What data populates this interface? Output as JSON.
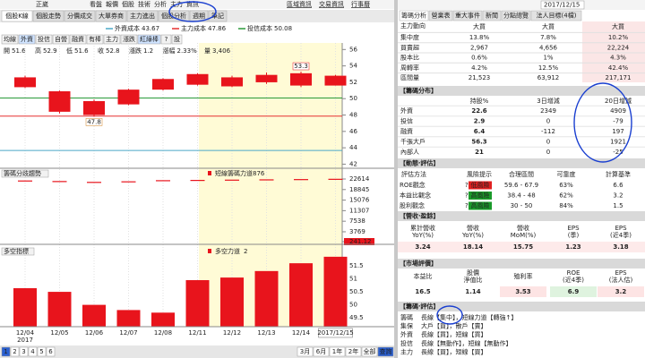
{
  "stock_name": "正崴",
  "top_menu": [
    "看盤",
    "報價",
    "個股",
    "技術",
    "分析",
    "主力",
    "資訊"
  ],
  "top_links": [
    "區域資訊",
    "交易資訊",
    "行事曆"
  ],
  "left_tabs": [
    "個股K線",
    "個股走勢",
    "分價成交",
    "大單券商",
    "主力進出",
    "個股分析",
    "週期",
    "筆記"
  ],
  "cost_lines": [
    {
      "name": "外資成本",
      "value": 43.67,
      "color": "#4aa8c8"
    },
    {
      "name": "主力成本",
      "value": 47.86,
      "color": "#e53030"
    },
    {
      "name": "投信成本",
      "value": 50.08,
      "color": "#2a9a3a"
    }
  ],
  "toolbar_buttons": [
    "均線",
    "外資",
    "投信",
    "自營",
    "融資",
    "有棒",
    "主力",
    "漲跌",
    "紅綠棒",
    "?",
    "設"
  ],
  "quote": [
    {
      "label": "開",
      "value": 51.6,
      "color": "#222"
    },
    {
      "label": "高",
      "value": 52.9,
      "color": "#222"
    },
    {
      "label": "低",
      "value": 51.6,
      "color": "#222"
    },
    {
      "label": "收",
      "value": 52.8,
      "color": "#222"
    },
    {
      "label": "漲跌",
      "value": 1.2,
      "color": "#e02020"
    },
    {
      "label": "漲幅",
      "value": "2.33%",
      "color": "#e02020"
    },
    {
      "label": "量",
      "value": "3,406",
      "color": "#222"
    }
  ],
  "dates": [
    "12/04",
    "12/05",
    "12/06",
    "12/07",
    "12/08",
    "12/11",
    "12/12",
    "12/13",
    "12/14",
    "2017/12/15"
  ],
  "year_label": "2017",
  "kline": {
    "ylim": [
      41.5,
      56.8
    ],
    "yticks": [
      42,
      44,
      46,
      48,
      50,
      52,
      54,
      56
    ],
    "color": "#e8141c",
    "open": [
      52.6,
      50.9,
      49.7,
      49.3,
      51.1,
      51.7,
      51.5,
      52.0,
      53.1,
      51.6
    ],
    "high": [
      52.8,
      51.0,
      49.9,
      51.2,
      52.5,
      53.1,
      52.8,
      53.2,
      53.3,
      52.9
    ],
    "low": [
      51.3,
      48.2,
      47.8,
      49.2,
      51.0,
      51.6,
      51.4,
      51.8,
      51.4,
      51.6
    ],
    "close": [
      51.4,
      48.4,
      48.0,
      51.1,
      52.4,
      53.0,
      52.6,
      52.9,
      51.6,
      52.8
    ],
    "marked_high": [
      null,
      null,
      null,
      null,
      null,
      null,
      null,
      null,
      53.3,
      null
    ],
    "marked_low": [
      null,
      null,
      47.8,
      null,
      null,
      null,
      null,
      null,
      null,
      null
    ]
  },
  "chip_panel": {
    "title": "籌碼分歧趨勢",
    "label": "短線籌碼力道",
    "value": 876,
    "ylim": [
      241.12,
      22614
    ],
    "yticks": [
      22614,
      18845,
      15076,
      11307,
      7538,
      3769,
      241.12
    ],
    "color": "#e8141c",
    "values": [
      21900,
      21700,
      21400,
      21600,
      22000,
      22100,
      22200,
      22300,
      22400,
      22500
    ]
  },
  "power_panel": {
    "title": "多空指標",
    "label": "多空力道",
    "value": 2,
    "ylim": [
      49.16,
      51.88
    ],
    "yticks": [
      51.5,
      51,
      50.5,
      50,
      49.5
    ],
    "color": "#e8141c",
    "values": [
      50.64,
      50.5,
      50.0,
      49.8,
      49.7,
      50.95,
      51.05,
      51.3,
      51.6,
      51.85
    ]
  },
  "pages": [
    "1",
    "2",
    "3",
    "4",
    "5",
    "6"
  ],
  "period_buttons": [
    "3月",
    "6月",
    "1年",
    "2年",
    "全部",
    "查詢"
  ],
  "right": {
    "date": "2017/12/15",
    "tabs": [
      "籌碼分析",
      "營業表",
      "重大事件",
      "新聞",
      "分點總覽",
      "法人目標(4檔)"
    ],
    "summary": {
      "header_label": "主力動向",
      "columns": [
        "大買",
        "大買",
        "大買"
      ],
      "rows": [
        [
          "集中度",
          "13.8%",
          "7.8%",
          "10.2%"
        ],
        [
          "買賣超",
          "2,967",
          "4,656",
          "22,224"
        ],
        [
          "股本比",
          "0.6%",
          "1%",
          "4.3%"
        ],
        [
          "周轉率",
          "4.2%",
          "12.5%",
          "42.4%"
        ],
        [
          "區間量",
          "21,523",
          "63,912",
          "217,171"
        ]
      ]
    },
    "distribution": {
      "title": "【籌碼分布】",
      "columns": [
        "持股%",
        "3日增減",
        "20日增減"
      ],
      "rows": [
        [
          "外資",
          22.6,
          2349,
          4909
        ],
        [
          "投信",
          2.9,
          0,
          -79
        ],
        [
          "融資",
          6.4,
          -112,
          197
        ],
        [
          "千張大戶",
          56.3,
          0,
          1921
        ],
        [
          "內部人",
          21,
          0,
          -25
        ]
      ]
    },
    "evaluation": {
      "title": "【動態‧評估】",
      "help": "?",
      "columns": [
        "評估方法",
        "風險提示",
        "合理區間",
        "可靠度",
        "計算基準"
      ],
      "rows": [
        {
          "method": "ROE觀念",
          "risk": "低風險",
          "risk_color": "#e02020",
          "range": "59.6 - 67.9",
          "reliability": "63%",
          "basis": 6.6
        },
        {
          "method": "本益比觀念",
          "risk": "高風險",
          "risk_color": "#1a9a2a",
          "range": "38.4 - 48",
          "reliability": "62%",
          "basis": 3.2
        },
        {
          "method": "股利觀念",
          "risk": "高風險",
          "risk_color": "#1a9a2a",
          "range": "30 - 50",
          "reliability": "84%",
          "basis": 1.5
        }
      ]
    },
    "revenue": {
      "title": "【營收‧盈餘】",
      "columns": [
        [
          "累計營收",
          "YoY(%)"
        ],
        [
          "營收",
          "YoY(%)"
        ],
        [
          "營收",
          "MoM(%)"
        ],
        [
          "EPS",
          "(季)"
        ],
        [
          "EPS",
          "(近4季)"
        ]
      ],
      "values": [
        3.24,
        18.14,
        15.75,
        1.23,
        3.18
      ],
      "color": "#e02020"
    },
    "market": {
      "title": "【市場評價】",
      "columns": [
        [
          "本益比"
        ],
        [
          "股價",
          "淨值比"
        ],
        [
          "殖利率"
        ],
        [
          "ROE",
          "(近4季)"
        ],
        [
          "EPS",
          "(法人估)"
        ]
      ],
      "values": [
        16.5,
        1.14,
        3.53,
        6.9,
        3.2
      ],
      "colors": [
        "#222",
        "#222",
        "#e02020",
        "#1a8a1a",
        "#e02020"
      ],
      "backgrounds": [
        "#ffffff",
        "#ffffff",
        "#fde4e4",
        "#dff3df",
        "#fde4e4"
      ]
    },
    "chip_eval": {
      "title": "【籌碼‧評估】",
      "lines": [
        {
          "label": "籌碼",
          "text": "長線【集中】，短線力道【轉強↑】",
          "color": "#e02020"
        },
        {
          "label": "集保",
          "text": "大戶【買】，散戶【賣】",
          "color": "#e02020"
        },
        {
          "label": "外資",
          "text": "長線【買】，短線【買】",
          "color": "#e02020"
        },
        {
          "label": "投信",
          "text": "長線【無動作】，短線【無動作】",
          "color": "#888888"
        },
        {
          "label": "主力",
          "text": "長線【買】，短線【買】",
          "color": "#e02020"
        }
      ]
    }
  }
}
